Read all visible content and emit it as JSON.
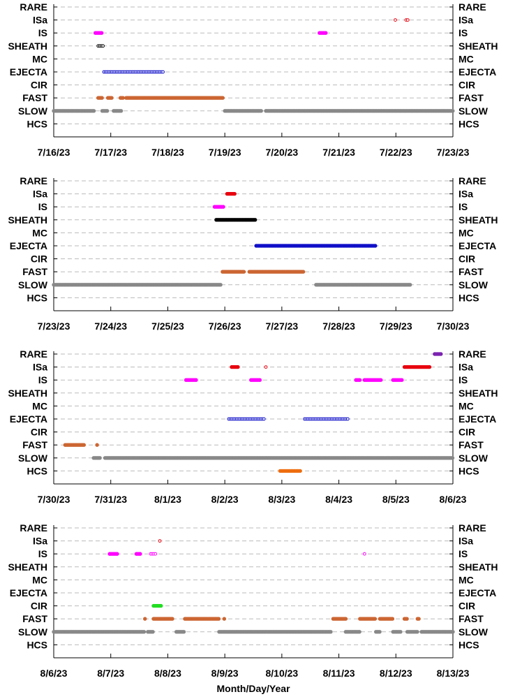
{
  "chart_data": {
    "type": "scatter",
    "xlabel": "Month/Day/Year",
    "categories": [
      "RARE",
      "ISa",
      "IS",
      "SHEATH",
      "MC",
      "EJECTA",
      "CIR",
      "FAST",
      "SLOW",
      "HCS"
    ],
    "grid": "dashed horizontal lines at each category",
    "colors": {
      "RARE": "#7b22b0",
      "ISa": "#e8000e",
      "IS": "#ff00ff",
      "SHEATH": "#000000",
      "EJECTA": "#1010c8",
      "CIR": "#22dd22",
      "FAST": "#cc6633",
      "SLOW": "#888888",
      "HCS": "#ee6e10"
    },
    "marker_note": "filled circles = solid markers; hollow circles = open markers",
    "panels": [
      {
        "x_ticks": [
          "7/16/23",
          "7/17/23",
          "7/18/23",
          "7/19/23",
          "7/20/23",
          "7/21/23",
          "7/22/23",
          "7/23/23"
        ],
        "xlim_days": [
          0,
          7
        ],
        "segments": [
          {
            "category": "SLOW",
            "start": 0.0,
            "end": 0.72,
            "style": "filled"
          },
          {
            "category": "SLOW",
            "start": 0.85,
            "end": 0.95,
            "style": "filled"
          },
          {
            "category": "SLOW",
            "start": 1.05,
            "end": 1.2,
            "style": "filled"
          },
          {
            "category": "SLOW",
            "start": 3.0,
            "end": 3.65,
            "style": "filled"
          },
          {
            "category": "SLOW",
            "start": 3.72,
            "end": 7.0,
            "style": "filled"
          },
          {
            "category": "FAST",
            "start": 0.78,
            "end": 0.86,
            "style": "filled"
          },
          {
            "category": "FAST",
            "start": 0.95,
            "end": 1.03,
            "style": "filled"
          },
          {
            "category": "FAST",
            "start": 1.17,
            "end": 1.22,
            "style": "filled"
          },
          {
            "category": "FAST",
            "start": 1.27,
            "end": 2.98,
            "style": "filled"
          },
          {
            "category": "EJECTA",
            "start": 0.88,
            "end": 1.92,
            "style": "hollow"
          },
          {
            "category": "SHEATH",
            "start": 0.78,
            "end": 0.88,
            "style": "hollow"
          },
          {
            "category": "IS",
            "start": 0.73,
            "end": 0.84,
            "style": "filled"
          },
          {
            "category": "IS",
            "start": 4.66,
            "end": 4.77,
            "style": "filled"
          },
          {
            "category": "ISa",
            "start": 5.99,
            "end": 6.01,
            "style": "hollow"
          },
          {
            "category": "ISa",
            "start": 6.18,
            "end": 6.23,
            "style": "hollow"
          }
        ]
      },
      {
        "x_ticks": [
          "7/23/23",
          "7/24/23",
          "7/25/23",
          "7/26/23",
          "7/27/23",
          "7/28/23",
          "7/29/23",
          "7/30/23"
        ],
        "xlim_days": [
          0,
          7
        ],
        "segments": [
          {
            "category": "SLOW",
            "start": 0.0,
            "end": 2.93,
            "style": "filled"
          },
          {
            "category": "SLOW",
            "start": 4.6,
            "end": 6.25,
            "style": "filled"
          },
          {
            "category": "FAST",
            "start": 2.96,
            "end": 3.35,
            "style": "filled"
          },
          {
            "category": "FAST",
            "start": 3.43,
            "end": 4.38,
            "style": "filled"
          },
          {
            "category": "EJECTA",
            "start": 3.55,
            "end": 5.65,
            "style": "filled"
          },
          {
            "category": "SHEATH",
            "start": 2.85,
            "end": 3.55,
            "style": "filled"
          },
          {
            "category": "IS",
            "start": 2.82,
            "end": 2.98,
            "style": "filled"
          },
          {
            "category": "ISa",
            "start": 3.04,
            "end": 3.18,
            "style": "filled"
          }
        ]
      },
      {
        "x_ticks": [
          "7/30/23",
          "7/31/23",
          "8/1/23",
          "8/2/23",
          "8/3/23",
          "8/4/23",
          "8/5/23",
          "8/6/23"
        ],
        "xlim_days": [
          0,
          7
        ],
        "segments": [
          {
            "category": "SLOW",
            "start": 0.7,
            "end": 0.82,
            "style": "filled"
          },
          {
            "category": "SLOW",
            "start": 0.9,
            "end": 7.0,
            "style": "filled"
          },
          {
            "category": "FAST",
            "start": 0.2,
            "end": 0.55,
            "style": "filled"
          },
          {
            "category": "FAST",
            "start": 0.76,
            "end": 0.78,
            "style": "filled"
          },
          {
            "category": "HCS",
            "start": 3.97,
            "end": 4.33,
            "style": "filled"
          },
          {
            "category": "EJECTA",
            "start": 3.07,
            "end": 3.71,
            "style": "hollow"
          },
          {
            "category": "EJECTA",
            "start": 4.4,
            "end": 5.17,
            "style": "hollow"
          },
          {
            "category": "IS",
            "start": 2.32,
            "end": 2.5,
            "style": "filled"
          },
          {
            "category": "IS",
            "start": 3.46,
            "end": 3.62,
            "style": "filled"
          },
          {
            "category": "IS",
            "start": 5.3,
            "end": 5.38,
            "style": "filled"
          },
          {
            "category": "IS",
            "start": 5.45,
            "end": 5.75,
            "style": "filled"
          },
          {
            "category": "IS",
            "start": 5.95,
            "end": 6.12,
            "style": "filled"
          },
          {
            "category": "ISa",
            "start": 3.12,
            "end": 3.23,
            "style": "filled"
          },
          {
            "category": "ISa",
            "start": 3.72,
            "end": 3.74,
            "style": "hollow"
          },
          {
            "category": "ISa",
            "start": 6.15,
            "end": 6.6,
            "style": "filled"
          },
          {
            "category": "RARE",
            "start": 6.68,
            "end": 6.8,
            "style": "filled"
          }
        ]
      },
      {
        "x_ticks": [
          "8/6/23",
          "8/7/23",
          "8/8/23",
          "8/9/23",
          "8/10/23",
          "8/11/23",
          "8/12/23",
          "8/13/23"
        ],
        "xlim_days": [
          0,
          7
        ],
        "segments": [
          {
            "category": "SLOW",
            "start": 0.0,
            "end": 1.6,
            "style": "filled"
          },
          {
            "category": "SLOW",
            "start": 1.65,
            "end": 1.75,
            "style": "filled"
          },
          {
            "category": "SLOW",
            "start": 2.15,
            "end": 2.3,
            "style": "filled"
          },
          {
            "category": "SLOW",
            "start": 2.9,
            "end": 4.87,
            "style": "filled"
          },
          {
            "category": "SLOW",
            "start": 5.12,
            "end": 5.37,
            "style": "filled"
          },
          {
            "category": "SLOW",
            "start": 5.65,
            "end": 5.72,
            "style": "filled"
          },
          {
            "category": "SLOW",
            "start": 5.95,
            "end": 6.1,
            "style": "filled"
          },
          {
            "category": "SLOW",
            "start": 6.2,
            "end": 6.38,
            "style": "filled"
          },
          {
            "category": "SLOW",
            "start": 6.45,
            "end": 7.0,
            "style": "filled"
          },
          {
            "category": "FAST",
            "start": 1.6,
            "end": 1.62,
            "style": "filled"
          },
          {
            "category": "FAST",
            "start": 1.75,
            "end": 2.1,
            "style": "filled"
          },
          {
            "category": "FAST",
            "start": 2.3,
            "end": 2.9,
            "style": "filled"
          },
          {
            "category": "FAST",
            "start": 2.99,
            "end": 3.01,
            "style": "filled"
          },
          {
            "category": "FAST",
            "start": 4.9,
            "end": 5.12,
            "style": "filled"
          },
          {
            "category": "FAST",
            "start": 5.37,
            "end": 5.65,
            "style": "filled"
          },
          {
            "category": "FAST",
            "start": 5.72,
            "end": 5.95,
            "style": "filled"
          },
          {
            "category": "FAST",
            "start": 6.15,
            "end": 6.2,
            "style": "filled"
          },
          {
            "category": "FAST",
            "start": 6.38,
            "end": 6.42,
            "style": "filled"
          },
          {
            "category": "CIR",
            "start": 1.75,
            "end": 1.9,
            "style": "filled"
          },
          {
            "category": "IS",
            "start": 0.98,
            "end": 1.12,
            "style": "filled"
          },
          {
            "category": "IS",
            "start": 1.45,
            "end": 1.52,
            "style": "filled"
          },
          {
            "category": "IS",
            "start": 1.7,
            "end": 1.8,
            "style": "hollow"
          },
          {
            "category": "IS",
            "start": 5.45,
            "end": 5.47,
            "style": "hollow"
          },
          {
            "category": "ISa",
            "start": 1.86,
            "end": 1.88,
            "style": "hollow"
          }
        ]
      }
    ]
  }
}
